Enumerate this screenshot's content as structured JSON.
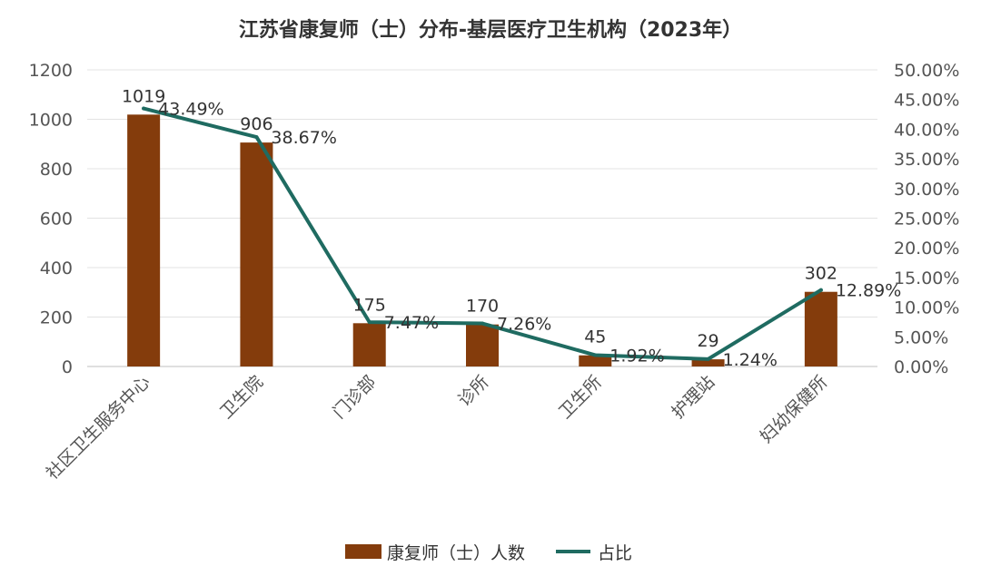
{
  "chart_data": {
    "type": "bar",
    "title": "江苏省康复师（士）分布-基层医疗卫生机构（2023年）",
    "categories": [
      "社区卫生服务中心",
      "卫生院",
      "门诊部",
      "诊所",
      "卫生所",
      "护理站",
      "妇幼保健所"
    ],
    "series": [
      {
        "name": "康复师（士）人数",
        "type": "bar",
        "axis": "left",
        "color": "#843C0C",
        "values": [
          1019,
          906,
          175,
          170,
          45,
          29,
          302
        ],
        "labels": [
          "1019",
          "906",
          "175",
          "170",
          "45",
          "29",
          "302"
        ]
      },
      {
        "name": "占比",
        "type": "line",
        "axis": "right",
        "color": "#1F6B61",
        "values": [
          43.49,
          38.67,
          7.47,
          7.26,
          1.92,
          1.24,
          12.89
        ],
        "labels": [
          "43.49%",
          "38.67%",
          "7.47%",
          "7.26%",
          "1.92%",
          "1.24%",
          "12.89%"
        ]
      }
    ],
    "y_left": {
      "min": 0,
      "max": 1200,
      "ticks": [
        "0",
        "200",
        "400",
        "600",
        "800",
        "1000",
        "1200"
      ]
    },
    "y_right": {
      "min": 0,
      "max": 50,
      "ticks": [
        "0.00%",
        "5.00%",
        "10.00%",
        "15.00%",
        "20.00%",
        "25.00%",
        "30.00%",
        "35.00%",
        "40.00%",
        "45.00%",
        "50.00%"
      ]
    },
    "grid": true,
    "legend": "bottom"
  }
}
